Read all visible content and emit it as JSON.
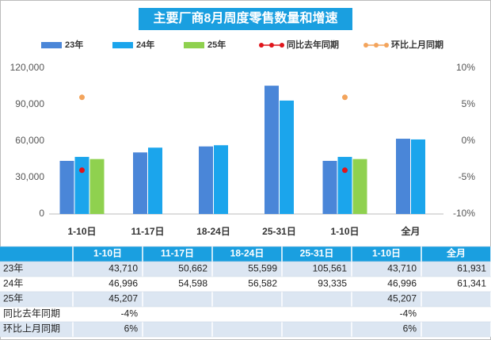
{
  "chart_data": {
    "type": "bar",
    "title": "主要厂商8月周度零售数量和增速",
    "categories": [
      "1-10日",
      "11-17日",
      "18-24日",
      "25-31日",
      "1-10日",
      "全月"
    ],
    "series": [
      {
        "name": "23年",
        "color": "#4a86d8",
        "values": [
          43710,
          50662,
          55599,
          105561,
          43710,
          61931
        ],
        "value_labels": [
          "43,710",
          "50,662",
          "55,599",
          "105,561",
          "43,710",
          "61,931"
        ]
      },
      {
        "name": "24年",
        "color": "#1ba5ec",
        "values": [
          46996,
          54598,
          56582,
          93335,
          46996,
          61341
        ],
        "value_labels": [
          "46,996",
          "54,598",
          "56,582",
          "93,335",
          "46,996",
          "61,341"
        ]
      },
      {
        "name": "25年",
        "color": "#8fd14f",
        "values": [
          45207,
          null,
          null,
          null,
          45207,
          null
        ],
        "value_labels": [
          "45,207",
          null,
          null,
          null,
          "45,207",
          null
        ]
      },
      {
        "name": "同比去年同期",
        "type": "line",
        "axis": "y2",
        "color": "#e0151b",
        "values": [
          -4,
          null,
          null,
          null,
          -4,
          null
        ],
        "value_labels": [
          "-4%",
          null,
          null,
          null,
          "-4%",
          null
        ]
      },
      {
        "name": "环比上月同期",
        "type": "line",
        "axis": "y2",
        "color": "#f3a45c",
        "values": [
          6,
          null,
          null,
          null,
          6,
          null
        ],
        "value_labels": [
          "6%",
          null,
          null,
          null,
          "6%",
          null
        ]
      }
    ],
    "ylim": [
      0,
      120000
    ],
    "yticks": [
      0,
      {
        "value": 30000,
        "label": "30,000"
      },
      {
        "value": 60000,
        "label": "60,000"
      },
      {
        "value": 90000,
        "label": "90,000"
      },
      {
        "value": 120000,
        "label": "120,000"
      }
    ],
    "y2lim": [
      -10,
      10
    ],
    "y2ticks": [
      {
        "value": -10,
        "label": "-10%"
      },
      {
        "value": -5,
        "label": "-5%"
      },
      {
        "value": 0,
        "label": "0%"
      },
      {
        "value": 5,
        "label": "5%"
      },
      {
        "value": 10,
        "label": "10%"
      }
    ],
    "grid": false
  }
}
